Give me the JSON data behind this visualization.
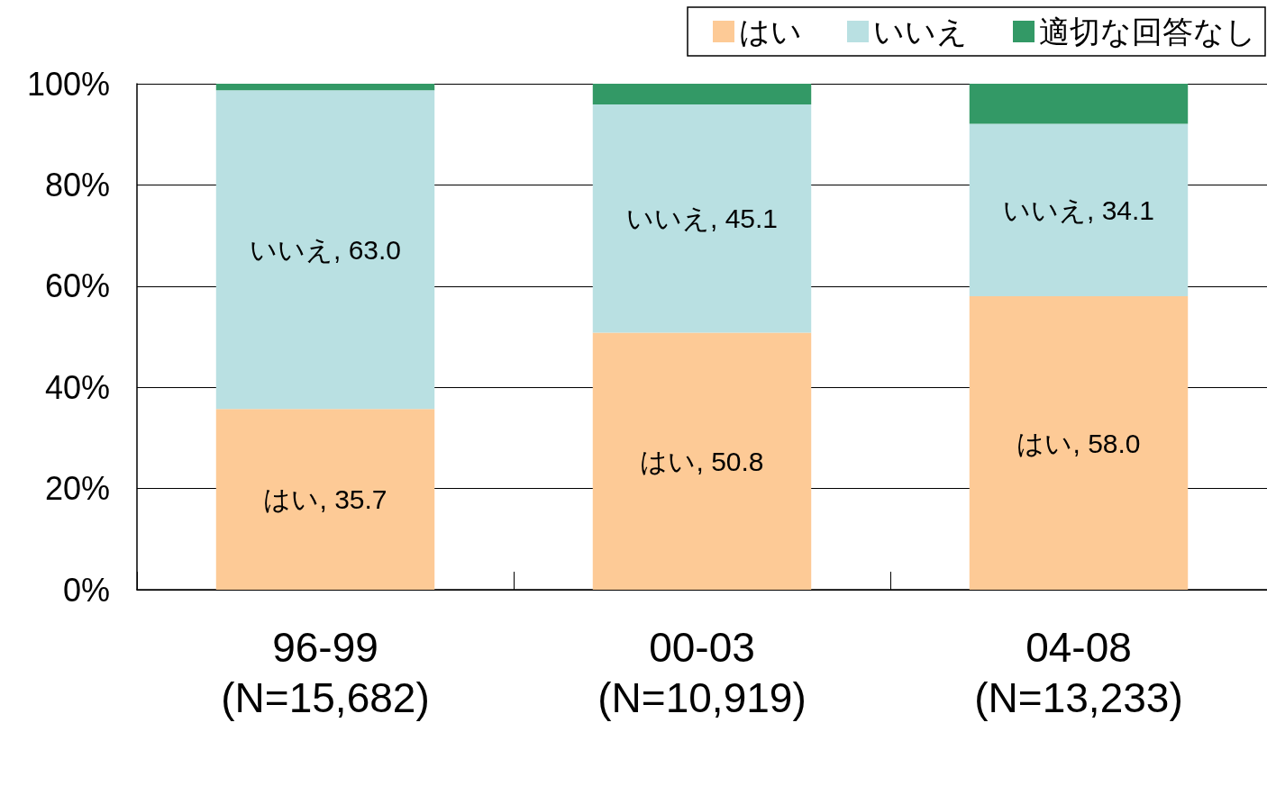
{
  "chart_data": {
    "type": "bar",
    "stacked": true,
    "categories": [
      "96-99\n\n(N=15,682)",
      "00-03\n\n(N=10,919)",
      "04-08\n\n(N=13,233)"
    ],
    "series": [
      {
        "name": "はい",
        "color": "#fdca96",
        "values": [
          35.7,
          50.8,
          58.0
        ],
        "value_labels": [
          "はい, 35.7",
          "はい, 50.8",
          "はい, 58.0"
        ]
      },
      {
        "name": "いいえ",
        "color": "#b9e0e2",
        "values": [
          63.0,
          45.1,
          34.1
        ],
        "value_labels": [
          "いいえ, 63.0",
          "いいえ, 45.1",
          "いいえ, 34.1"
        ]
      },
      {
        "name": "適切な回答なし",
        "color": "#339966",
        "values": [
          1.3,
          4.1,
          7.9
        ]
      }
    ],
    "ylim": [
      0,
      100
    ],
    "yticks": [
      {
        "value": 0,
        "label": "0%"
      },
      {
        "value": 20,
        "label": "20%"
      },
      {
        "value": 40,
        "label": "40%"
      },
      {
        "value": 60,
        "label": "60%"
      },
      {
        "value": 80,
        "label": "80%"
      },
      {
        "value": 100,
        "label": "100%"
      }
    ],
    "grid": "y",
    "legend": "top right"
  }
}
